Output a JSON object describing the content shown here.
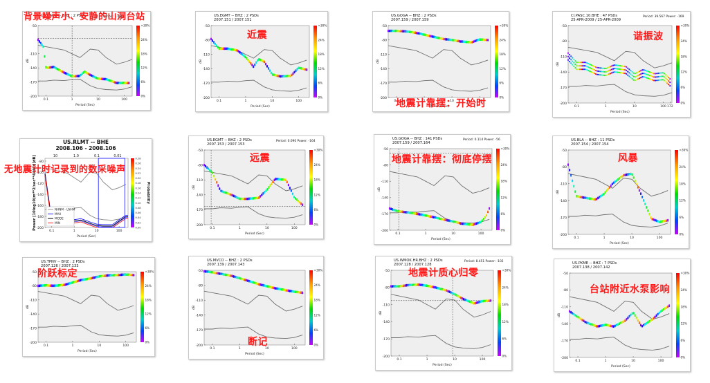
{
  "colors": {
    "caption": "#ff1a1a",
    "plot_bg": "#efefef",
    "model_line": "#6e6e6e",
    "dot_line": "#444444"
  },
  "common": {
    "xlabel": "Period (Sec)",
    "ylabel": "dB",
    "scale_labels": [
      ">30%",
      "24%",
      "18%",
      "12%",
      "6%",
      "0%"
    ]
  },
  "panels": [
    {
      "caption": "背景噪声小、安静的山洞台站",
      "line1": "US.EGCD -- BHZ : 2 PSDs",
      "line2": "",
      "info": "Period: 1.968",
      "yticks": [
        "-50",
        "-110",
        "-140",
        "-170",
        "-200"
      ],
      "xticks": [
        "0.1",
        "1",
        "10",
        "100"
      ]
    },
    {
      "caption": "近震",
      "line1": "US.EGMT -- BHZ : 2 PSDs",
      "line2": "2007.151 / 2007.151",
      "info": "",
      "yticks": [
        "-50",
        "-80",
        "-110",
        "-140",
        "-170",
        "-200"
      ],
      "xticks": [
        "0.1",
        "1",
        "10",
        "100"
      ]
    },
    {
      "caption": "地震计靠摆：开始时",
      "line1": "US.GOGA -- BHZ : 2 PSDs",
      "line2": "2007.159 / 2007.159",
      "info": "",
      "yticks": [
        "-50",
        "-80",
        "-110",
        "-140",
        "-170",
        "-200"
      ],
      "xticks": [
        "0.1",
        "1",
        "10",
        "100"
      ]
    },
    {
      "caption": "谐振波",
      "line1": "CI.PASC.10.BHE : 47 PSDs",
      "line2": "25-APR-2009 / 25-APR-2009",
      "info": "Period: 39.567  Power: -169",
      "yticks": [
        "-50",
        "-80",
        "-110",
        "-140",
        "-170",
        "-200"
      ],
      "xticks": [
        "0.1",
        "1",
        "10",
        "100",
        "172"
      ]
    },
    {
      "caption": "无地震计时记录到的数采噪声",
      "line1": "US.RLMT -- BHE",
      "line2": "2008.106 - 2008.106",
      "info": "",
      "yticks": [
        "-80",
        "-100",
        "-120",
        "-140",
        "-160",
        "-180",
        "-200"
      ],
      "xticks": [
        "0.1",
        "1",
        "10",
        "100"
      ]
    },
    {
      "caption": "远震",
      "line1": "US.EGMT -- BHZ : 2 PSDs",
      "line2": "2007.153 / 2007.153",
      "info": "Period: 0.090  Power: -164",
      "yticks": [
        "-50",
        "-80",
        "-110",
        "-140",
        "-170",
        "-200"
      ],
      "xticks": [
        "0.1",
        "1",
        "10",
        "100"
      ]
    },
    {
      "caption": "地震计靠摆：彻底停摆",
      "line1": "US.GOGA -- BHZ : 141 PSDs",
      "line2": "2007.159 / 2007.164",
      "info": "Period: 0.114  Power: -56",
      "yticks": [
        "-50",
        "-80",
        "-110",
        "-140",
        "-170",
        "-200"
      ],
      "xticks": [
        "0.1",
        "1",
        "10",
        "100"
      ]
    },
    {
      "caption": "风暴",
      "line1": "US.BLA -- BHZ : 11 PSDs",
      "line2": "2007.154 / 2007.154",
      "info": "",
      "yticks": [
        "-50",
        "-80",
        "-110",
        "-140",
        "-170",
        "-200"
      ],
      "xticks": [
        "0.1",
        "1",
        "10",
        "100"
      ]
    },
    {
      "caption": "阶跃标定",
      "line1": "US.TPNV -- BHZ : 2 PSDs",
      "line2": "2007.126 / 2007.133",
      "info": "",
      "yticks": [
        "-50",
        "-80",
        "-110",
        "-140",
        "-170",
        "-200"
      ],
      "xticks": [
        "0.1",
        "1",
        "10",
        "100"
      ]
    },
    {
      "caption": "断记",
      "line1": "US.MVCO -- BHZ : 2 PSDs",
      "line2": "2007.139 / 2007.143",
      "info": "",
      "yticks": [
        "-50",
        "-80",
        "-110",
        "-140",
        "-170",
        "-200"
      ],
      "xticks": [
        "0.1",
        "1",
        "10",
        "100"
      ]
    },
    {
      "caption": "地震计质心归零",
      "line1": "US.WMOK.HR.BHZ : 2 PSDs",
      "line2": "2007.128 / 2007.128",
      "info": "Period: 8.451  Power: -102",
      "yticks": [
        "-50",
        "-80",
        "-110",
        "-140",
        "-170",
        "-200"
      ],
      "xticks": [
        "0.1",
        "1",
        "10",
        "100"
      ]
    },
    {
      "caption": "台站附近水泵影响",
      "line1": "US.PKME -- BHZ : 7 PSDs",
      "line2": "2007.138 / 2007.142",
      "info": "",
      "yticks": [
        "-50",
        "-80",
        "-110",
        "-140",
        "-170",
        "-200"
      ],
      "xticks": [
        "0.1",
        "1",
        "10",
        "100"
      ]
    }
  ],
  "rlmt": {
    "top_ticks": [
      "10",
      "1.0",
      "0.1",
      "0.01"
    ],
    "ylabel": "Power [10log10(m**2/sec**4/Hz)][dB]",
    "prob_label": "Probability",
    "legend": [
      "NHNM - LNHM",
      "MAX",
      "MODE",
      "MIN"
    ],
    "scale_labels": [
      "0.28",
      "0.26",
      "0.24",
      "0.22",
      "0.20",
      "0.18",
      "0.16",
      "0.14",
      "0.12",
      "0.10",
      "0.08",
      "0.06",
      "0.04",
      "0.02",
      "0.00"
    ]
  },
  "chart_data": [
    {
      "type": "scatter",
      "panel": "背景噪声小、安静的山洞台站",
      "x": [
        0.05,
        0.08,
        0.1,
        0.2,
        0.5,
        1,
        2,
        3,
        5,
        10,
        20,
        50,
        100,
        150
      ],
      "y": [
        -80,
        -95,
        -140,
        -138,
        -150,
        -158,
        -157,
        -148,
        -155,
        -163,
        -164,
        -172,
        -172,
        -172
      ],
      "xlim": [
        0.05,
        200
      ],
      "ylim": [
        -200,
        -50
      ]
    },
    {
      "type": "scatter",
      "panel": "近震",
      "x": [
        0.05,
        0.1,
        0.2,
        0.5,
        1,
        2,
        3,
        5,
        10,
        20,
        50,
        100,
        200
      ],
      "y": [
        -78,
        -98,
        -98,
        -102,
        -116,
        -136,
        -120,
        -125,
        -152,
        -156,
        -155,
        -138,
        -142
      ],
      "xlim": [
        0.05,
        250
      ],
      "ylim": [
        -200,
        -50
      ]
    },
    {
      "type": "scatter",
      "panel": "地震计靠摆：开始时",
      "x": [
        0.05,
        0.1,
        0.2,
        0.5,
        1,
        2,
        5,
        10,
        20,
        50,
        100,
        200
      ],
      "y": [
        -61,
        -61,
        -62,
        -65,
        -69,
        -73,
        -78,
        -80,
        -83,
        -85,
        -79,
        -80
      ],
      "xlim": [
        0.05,
        250
      ],
      "ylim": [
        -200,
        -50
      ]
    },
    {
      "type": "scatter",
      "panel": "谐振波",
      "x": [
        0.05,
        0.1,
        0.2,
        0.5,
        1,
        2,
        5,
        10,
        20,
        50,
        100,
        172
      ],
      "y": [
        -110,
        -128,
        -128,
        -138,
        -140,
        -133,
        -136,
        -150,
        -142,
        -150,
        -148,
        -160
      ],
      "xlim": [
        0.05,
        200
      ],
      "ylim": [
        -200,
        -50
      ]
    },
    {
      "type": "line",
      "panel": "无地震计时记录到的数采噪声",
      "x": [
        0.05,
        0.1,
        0.2,
        0.5,
        1,
        2,
        5,
        10,
        20,
        50,
        100,
        200
      ],
      "y": [
        -105,
        -190,
        -175,
        -185,
        -190,
        -188,
        -194,
        -198,
        -199,
        -199,
        -190,
        -182
      ],
      "xlim": [
        0.05,
        250
      ],
      "ylim": [
        -200,
        -75
      ]
    },
    {
      "type": "scatter",
      "panel": "远震",
      "x": [
        0.05,
        0.1,
        0.2,
        0.5,
        1,
        2,
        5,
        10,
        20,
        50,
        100,
        200
      ],
      "y": [
        -80,
        -95,
        -132,
        -140,
        -148,
        -148,
        -146,
        -130,
        -108,
        -110,
        -145,
        -160
      ],
      "xlim": [
        0.05,
        250
      ],
      "ylim": [
        -200,
        -50
      ]
    },
    {
      "type": "scatter",
      "panel": "地震计靠摆：彻底停摆",
      "x": [
        0.05,
        0.1,
        0.2,
        0.5,
        1,
        2,
        5,
        10,
        20,
        50,
        100,
        150,
        200
      ],
      "y": [
        -160,
        -165,
        -167,
        -170,
        -173,
        -176,
        -181,
        -184,
        -188,
        -190,
        -185,
        -175,
        -160
      ],
      "xlim": [
        0.05,
        250
      ],
      "ylim": [
        -200,
        -50
      ]
    },
    {
      "type": "scatter",
      "panel": "风暴",
      "x": [
        0.05,
        0.1,
        0.2,
        0.5,
        1,
        2,
        5,
        10,
        20,
        50,
        100,
        200
      ],
      "y": [
        -76,
        -132,
        -135,
        -138,
        -128,
        -110,
        -95,
        -92,
        -125,
        -172,
        -178,
        -175
      ],
      "xlim": [
        0.05,
        250
      ],
      "ylim": [
        -200,
        -50
      ]
    },
    {
      "type": "scatter",
      "panel": "阶跃标定",
      "x": [
        0.05,
        0.1,
        0.2,
        0.5,
        1,
        2,
        5,
        10,
        20,
        50,
        100,
        200
      ],
      "y": [
        -80,
        -79,
        -80,
        -78,
        -73,
        -68,
        -64,
        -60,
        -58,
        -57,
        -56,
        -57
      ],
      "xlim": [
        0.05,
        250
      ],
      "ylim": [
        -200,
        -50
      ]
    },
    {
      "type": "scatter",
      "panel": "断记",
      "x": [
        0.05,
        0.1,
        0.2,
        0.5,
        1,
        2,
        5,
        10,
        20,
        50,
        100,
        200
      ],
      "y": [
        -52,
        -54,
        -57,
        -61,
        -66,
        -71,
        -78,
        -82,
        -86,
        -90,
        -93,
        -95
      ],
      "xlim": [
        0.05,
        250
      ],
      "ylim": [
        -200,
        -50
      ]
    },
    {
      "type": "scatter",
      "panel": "地震计质心归零",
      "x": [
        0.05,
        0.1,
        0.2,
        0.5,
        1,
        2,
        5,
        10,
        20,
        50,
        100,
        200
      ],
      "y": [
        -78,
        -78,
        -76,
        -75,
        -77,
        -80,
        -85,
        -92,
        -100,
        -108,
        -104,
        -103
      ],
      "xlim": [
        0.05,
        250
      ],
      "ylim": [
        -200,
        -50
      ]
    },
    {
      "type": "scatter",
      "panel": "台站附近水泵影响",
      "x": [
        0.05,
        0.1,
        0.2,
        0.5,
        1,
        2,
        5,
        10,
        20,
        50,
        100,
        200
      ],
      "y": [
        -118,
        -128,
        -138,
        -145,
        -142,
        -145,
        -135,
        -120,
        -145,
        -132,
        -118,
        -108
      ],
      "xlim": [
        0.05,
        250
      ],
      "ylim": [
        -200,
        -50
      ]
    }
  ]
}
